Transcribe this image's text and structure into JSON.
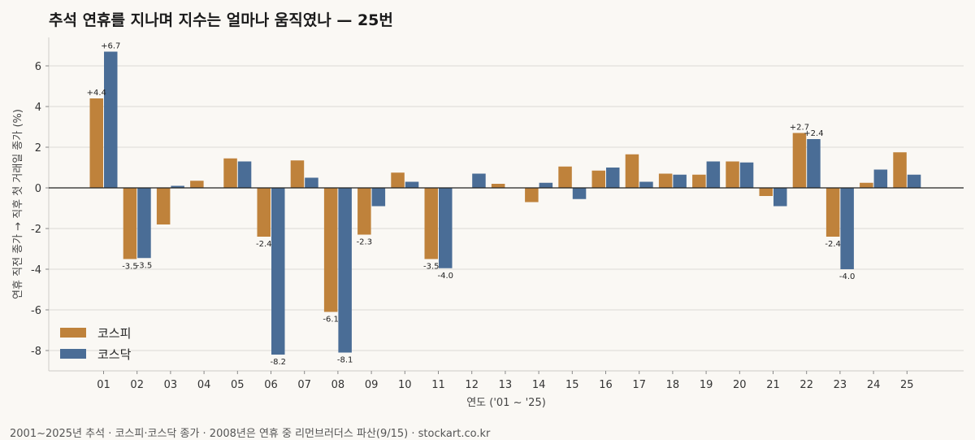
{
  "title": "추석 연휴를 지나며 지수는 얼마나 움직였나 — 25번",
  "footer": "2001~2025년 추석 · 코스피·코스닥 종가 · 2008년은 연휴 중 리먼브러더스 파산(9/15) · stockart.co.kr",
  "colors": {
    "kospi": "#bf823b",
    "kosdaq": "#4a6d96",
    "grid": "#dcdad6",
    "zero": "#222222"
  },
  "chart_data": {
    "type": "bar",
    "title": "추석 연휴를 지나며 지수는 얼마나 움직였나 — 25번",
    "xlabel": "연도 ('01 ~ '25)",
    "ylabel": "연휴 직전 종가 → 직후 첫 거래일 종가 (%)",
    "ylim": [
      -9,
      7.4
    ],
    "yticks": [
      6,
      4,
      2,
      0,
      -2,
      -4,
      -6,
      -8
    ],
    "grid": true,
    "legend_position": "bottom-left",
    "categories": [
      "01",
      "02",
      "03",
      "04",
      "05",
      "06",
      "07",
      "08",
      "09",
      "10",
      "11",
      "12",
      "13",
      "14",
      "15",
      "16",
      "17",
      "18",
      "19",
      "20",
      "21",
      "22",
      "23",
      "24",
      "25"
    ],
    "series": [
      {
        "name": "코스피",
        "color": "#bf823b",
        "values": [
          4.4,
          -3.5,
          -1.8,
          0.35,
          1.45,
          -2.4,
          1.35,
          -6.1,
          -2.3,
          0.75,
          -3.5,
          0.0,
          0.2,
          -0.7,
          1.05,
          0.85,
          1.65,
          0.7,
          0.65,
          1.3,
          -0.4,
          2.7,
          -2.4,
          0.25,
          1.75
        ],
        "labels": [
          "+4.4",
          "-3.5",
          "",
          "",
          "",
          "-2.4",
          "",
          "-6.1",
          "-2.3",
          "",
          "-3.5",
          "",
          "",
          "",
          "",
          "",
          "",
          "",
          "",
          "",
          "",
          "+2.7",
          "-2.4",
          "",
          ""
        ]
      },
      {
        "name": "코스닥",
        "color": "#4a6d96",
        "values": [
          6.7,
          -3.45,
          0.1,
          0.0,
          1.3,
          -8.2,
          0.5,
          -8.1,
          -0.9,
          0.3,
          -3.95,
          0.7,
          0.0,
          0.25,
          -0.55,
          1.0,
          0.3,
          0.65,
          1.3,
          1.25,
          -0.9,
          2.4,
          -4.0,
          0.9,
          0.65
        ],
        "labels": [
          "+6.7",
          "-3.5",
          "",
          "",
          "",
          "-8.2",
          "",
          "-8.1",
          "",
          "",
          "-4.0",
          "",
          "",
          "",
          "",
          "",
          "",
          "",
          "",
          "",
          "",
          "+2.4",
          "-4.0",
          "",
          ""
        ]
      }
    ]
  }
}
